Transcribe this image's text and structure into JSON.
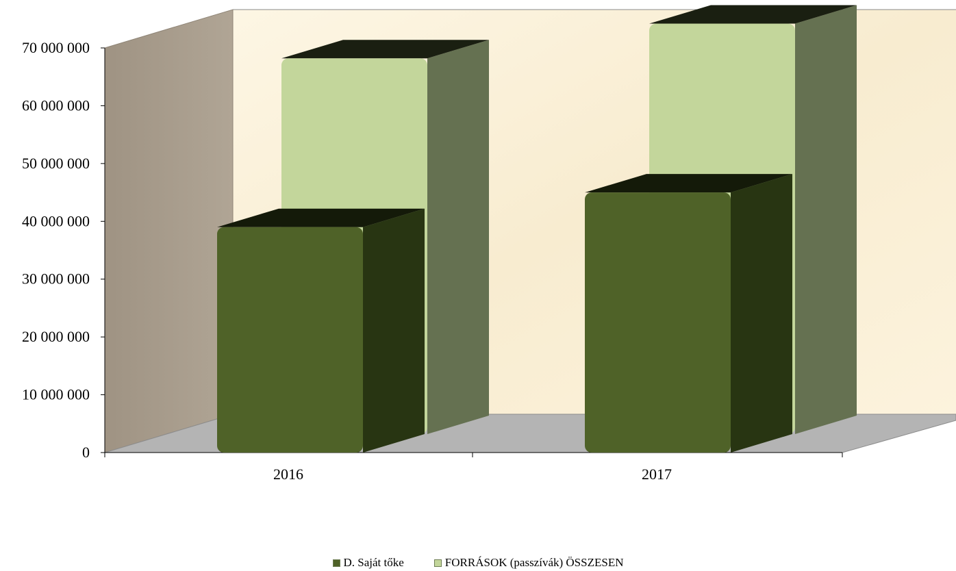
{
  "chart_data": {
    "type": "bar",
    "variant": "3d-clustered-column",
    "categories": [
      "2016",
      "2017"
    ],
    "series": [
      {
        "name": "D. Saját tőke",
        "values": [
          39000000,
          45000000
        ],
        "color": "#4f6228"
      },
      {
        "name": "FORRÁSOK (passzívák) ÖSSZESEN",
        "values": [
          65000000,
          71000000
        ],
        "color": "#c3d69b"
      }
    ],
    "ylim": [
      0,
      70000000
    ],
    "yticks": [
      "0",
      "10 000 000",
      "20 000 000",
      "30 000 000",
      "40 000 000",
      "50 000 000",
      "60 000 000",
      "70 000 000"
    ],
    "legend_position": "bottom",
    "grid": false,
    "colors": {
      "back_wall": "#fbf2dc",
      "side_wall": "#a79b8b",
      "floor": "#b4b4b4"
    }
  }
}
